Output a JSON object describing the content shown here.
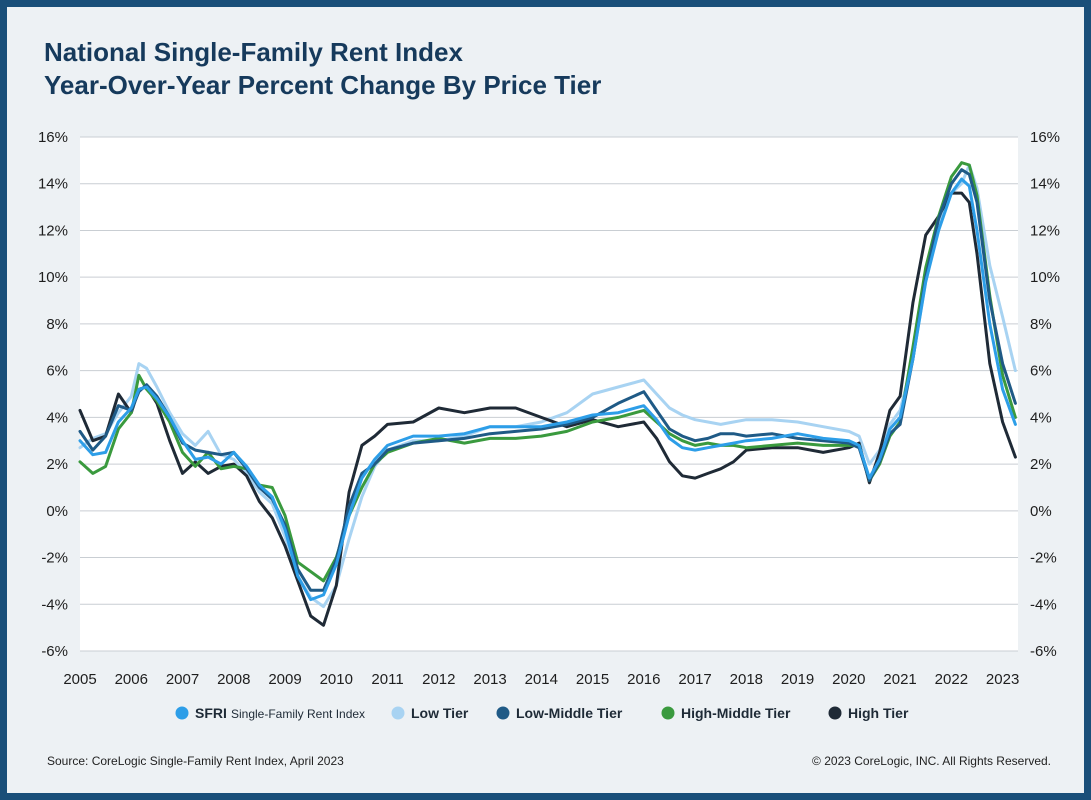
{
  "title_line1": "National Single-Family Rent Index",
  "title_line2": "Year-Over-Year Percent Change By Price Tier",
  "source": "Source: CoreLogic Single-Family Rent Index, April 2023",
  "copyright": "© 2023 CoreLogic, INC. All Rights Reserved.",
  "colors": {
    "sfri": "#2d9ee8",
    "low": "#a8d3f2",
    "low_middle": "#1f5a86",
    "high_middle": "#3a9a3e",
    "high": "#1f2a36",
    "title": "#163a5c",
    "border": "#1a4f79"
  },
  "chart_data": {
    "type": "line",
    "title": "National Single-Family Rent Index Year-Over-Year Percent Change By Price Tier",
    "xlabel": "",
    "ylabel": "",
    "ylim": [
      -6,
      16
    ],
    "xlim": [
      2005,
      2023.3
    ],
    "grid": "horizontal",
    "legend_position": "bottom",
    "y_ticks": [
      "-6%",
      "-4%",
      "-2%",
      "0%",
      "2%",
      "4%",
      "6%",
      "8%",
      "10%",
      "12%",
      "14%",
      "16%"
    ],
    "x_ticks": [
      "2005",
      "2006",
      "2007",
      "2008",
      "2009",
      "2010",
      "2011",
      "2012",
      "2013",
      "2014",
      "2015",
      "2016",
      "2017",
      "2018",
      "2019",
      "2020",
      "2021",
      "2022",
      "2023"
    ],
    "x": [
      2005.0,
      2005.25,
      2005.5,
      2005.75,
      2006.0,
      2006.15,
      2006.3,
      2006.5,
      2006.75,
      2007.0,
      2007.25,
      2007.5,
      2007.75,
      2008.0,
      2008.25,
      2008.5,
      2008.75,
      2009.0,
      2009.25,
      2009.5,
      2009.75,
      2010.0,
      2010.25,
      2010.5,
      2010.75,
      2011.0,
      2011.5,
      2012.0,
      2012.5,
      2013.0,
      2013.5,
      2014.0,
      2014.5,
      2015.0,
      2015.5,
      2016.0,
      2016.25,
      2016.5,
      2016.75,
      2017.0,
      2017.25,
      2017.5,
      2017.75,
      2018.0,
      2018.5,
      2019.0,
      2019.5,
      2020.0,
      2020.2,
      2020.4,
      2020.6,
      2020.8,
      2021.0,
      2021.25,
      2021.5,
      2021.75,
      2022.0,
      2022.2,
      2022.35,
      2022.5,
      2022.75,
      2023.0,
      2023.25
    ],
    "series": [
      {
        "name": "SFRI",
        "full_name": "Single-Family Rent Index",
        "values": [
          3.0,
          2.4,
          2.5,
          3.8,
          4.4,
          5.2,
          5.3,
          4.8,
          4.0,
          3.0,
          2.2,
          2.3,
          2.0,
          2.5,
          1.9,
          1.1,
          0.6,
          -0.8,
          -2.8,
          -3.8,
          -3.6,
          -2.3,
          -0.2,
          1.4,
          2.2,
          2.8,
          3.2,
          3.2,
          3.3,
          3.6,
          3.6,
          3.6,
          3.8,
          4.1,
          4.2,
          4.5,
          3.9,
          3.1,
          2.7,
          2.6,
          2.7,
          2.8,
          2.9,
          3.0,
          3.1,
          3.3,
          3.1,
          3.0,
          2.8,
          1.4,
          2.2,
          3.5,
          4.0,
          6.5,
          9.8,
          12.0,
          13.6,
          14.2,
          13.9,
          12.0,
          8.0,
          5.2,
          3.7
        ]
      },
      {
        "name": "Low Tier",
        "values": [
          2.7,
          3.1,
          3.3,
          4.2,
          4.9,
          6.3,
          6.1,
          5.3,
          4.2,
          3.3,
          2.8,
          3.4,
          2.4,
          2.2,
          1.6,
          0.8,
          0.3,
          -1.1,
          -2.8,
          -3.7,
          -4.1,
          -3.2,
          -1.2,
          0.6,
          1.9,
          2.6,
          3.0,
          3.0,
          3.2,
          3.6,
          3.6,
          3.8,
          4.2,
          5.0,
          5.3,
          5.6,
          5.0,
          4.4,
          4.1,
          3.9,
          3.8,
          3.7,
          3.8,
          3.9,
          3.9,
          3.8,
          3.6,
          3.4,
          3.2,
          2.0,
          2.6,
          3.7,
          4.3,
          6.5,
          9.8,
          12.2,
          13.6,
          14.0,
          14.8,
          13.8,
          10.5,
          8.3,
          6.0
        ]
      },
      {
        "name": "Low-Middle Tier",
        "values": [
          3.4,
          2.6,
          3.2,
          4.5,
          4.3,
          5.1,
          5.4,
          4.9,
          4.0,
          2.9,
          2.6,
          2.5,
          2.4,
          2.5,
          1.8,
          1.0,
          0.5,
          -0.6,
          -2.5,
          -3.4,
          -3.4,
          -2.1,
          0.2,
          1.6,
          2.0,
          2.6,
          2.9,
          3.0,
          3.1,
          3.3,
          3.4,
          3.5,
          3.7,
          4.0,
          4.6,
          5.1,
          4.3,
          3.5,
          3.2,
          3.0,
          3.1,
          3.3,
          3.3,
          3.2,
          3.3,
          3.1,
          3.0,
          2.9,
          2.7,
          1.3,
          2.1,
          3.3,
          3.7,
          6.5,
          10.0,
          12.5,
          14.0,
          14.6,
          14.4,
          13.2,
          9.0,
          6.3,
          4.6
        ]
      },
      {
        "name": "High-Middle Tier",
        "values": [
          2.1,
          1.6,
          1.9,
          3.5,
          4.2,
          5.8,
          5.2,
          4.7,
          3.8,
          2.5,
          1.9,
          2.5,
          1.8,
          1.9,
          1.8,
          1.1,
          1.0,
          -0.2,
          -2.2,
          -2.6,
          -3.0,
          -2.0,
          -0.2,
          1.0,
          2.0,
          2.5,
          2.9,
          3.1,
          2.9,
          3.1,
          3.1,
          3.2,
          3.4,
          3.8,
          4.0,
          4.3,
          3.8,
          3.3,
          3.0,
          2.8,
          2.9,
          2.8,
          2.8,
          2.7,
          2.8,
          2.9,
          2.8,
          2.8,
          2.8,
          1.3,
          2.0,
          3.2,
          3.8,
          7.0,
          10.4,
          12.6,
          14.3,
          14.9,
          14.8,
          13.5,
          9.2,
          5.8,
          4.0
        ]
      },
      {
        "name": "High Tier",
        "values": [
          4.3,
          3.0,
          3.2,
          5.0,
          4.2,
          5.2,
          5.3,
          4.6,
          3.0,
          1.6,
          2.1,
          1.6,
          1.9,
          2.0,
          1.5,
          0.4,
          -0.3,
          -1.5,
          -3.0,
          -4.5,
          -4.9,
          -3.2,
          0.8,
          2.8,
          3.2,
          3.7,
          3.8,
          4.4,
          4.2,
          4.4,
          4.4,
          4.0,
          3.6,
          3.9,
          3.6,
          3.8,
          3.1,
          2.1,
          1.5,
          1.4,
          1.6,
          1.8,
          2.1,
          2.6,
          2.7,
          2.7,
          2.5,
          2.7,
          2.9,
          1.2,
          2.5,
          4.3,
          4.9,
          8.9,
          11.8,
          12.6,
          13.6,
          13.6,
          13.2,
          11.0,
          6.3,
          3.8,
          2.3
        ]
      }
    ]
  }
}
